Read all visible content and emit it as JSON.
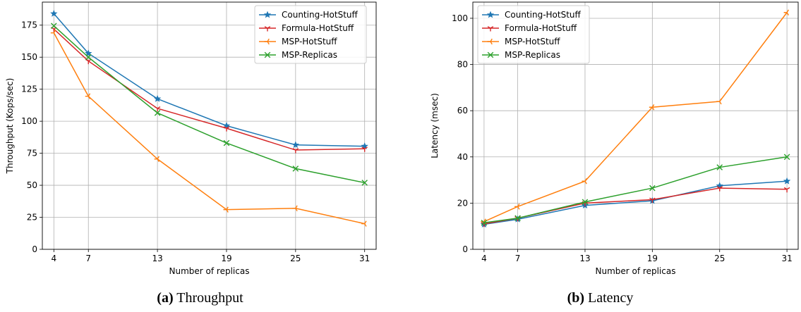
{
  "figures": [
    {
      "caption_prefix": "(a)",
      "caption_text": "Throughput"
    },
    {
      "caption_prefix": "(b)",
      "caption_text": "Latency"
    }
  ],
  "chart_data": [
    {
      "type": "line",
      "title": "",
      "xlabel": "Number of replicas",
      "ylabel": "Throughput (Kops/sec)",
      "x": [
        4,
        7,
        13,
        19,
        25,
        31
      ],
      "xticks": [
        4,
        7,
        13,
        19,
        25,
        31
      ],
      "ylim": [
        0,
        193
      ],
      "yticks": [
        0,
        25,
        50,
        75,
        100,
        125,
        150,
        175
      ],
      "grid": true,
      "legend_position": "top-right",
      "series": [
        {
          "name": "Counting-HotStuff",
          "color": "#1f77b4",
          "marker": "star",
          "values": [
            184,
            153,
            117.5,
            96.5,
            81.5,
            80.5
          ]
        },
        {
          "name": "Formula-HotStuff",
          "color": "#d62728",
          "marker": "tri_down",
          "values": [
            172,
            147,
            110,
            94.5,
            77.5,
            78.5
          ]
        },
        {
          "name": "MSP-HotStuff",
          "color": "#ff7f0e",
          "marker": "tri_left",
          "values": [
            169,
            119.5,
            70.5,
            31,
            32,
            20
          ]
        },
        {
          "name": "MSP-Replicas",
          "color": "#2ca02c",
          "marker": "x",
          "values": [
            174.5,
            150,
            106.5,
            83,
            63,
            52
          ]
        }
      ]
    },
    {
      "type": "line",
      "title": "",
      "xlabel": "Number of replicas",
      "ylabel": "Latency (msec)",
      "x": [
        4,
        7,
        13,
        19,
        25,
        31
      ],
      "xticks": [
        4,
        7,
        13,
        19,
        25,
        31
      ],
      "ylim": [
        0,
        107
      ],
      "yticks": [
        0,
        20,
        40,
        60,
        80,
        100
      ],
      "grid": true,
      "legend_position": "top-left",
      "series": [
        {
          "name": "Counting-HotStuff",
          "color": "#1f77b4",
          "marker": "star",
          "values": [
            10.8,
            13,
            19,
            21,
            27.5,
            29.5
          ]
        },
        {
          "name": "Formula-HotStuff",
          "color": "#d62728",
          "marker": "tri_down",
          "values": [
            11,
            13.5,
            20,
            21.5,
            26.5,
            26
          ]
        },
        {
          "name": "MSP-HotStuff",
          "color": "#ff7f0e",
          "marker": "tri_left",
          "values": [
            12,
            18.5,
            29.5,
            61.5,
            64,
            102.5
          ]
        },
        {
          "name": "MSP-Replicas",
          "color": "#2ca02c",
          "marker": "x",
          "values": [
            11.5,
            13.5,
            20.5,
            26.5,
            35.5,
            40
          ]
        }
      ]
    }
  ]
}
